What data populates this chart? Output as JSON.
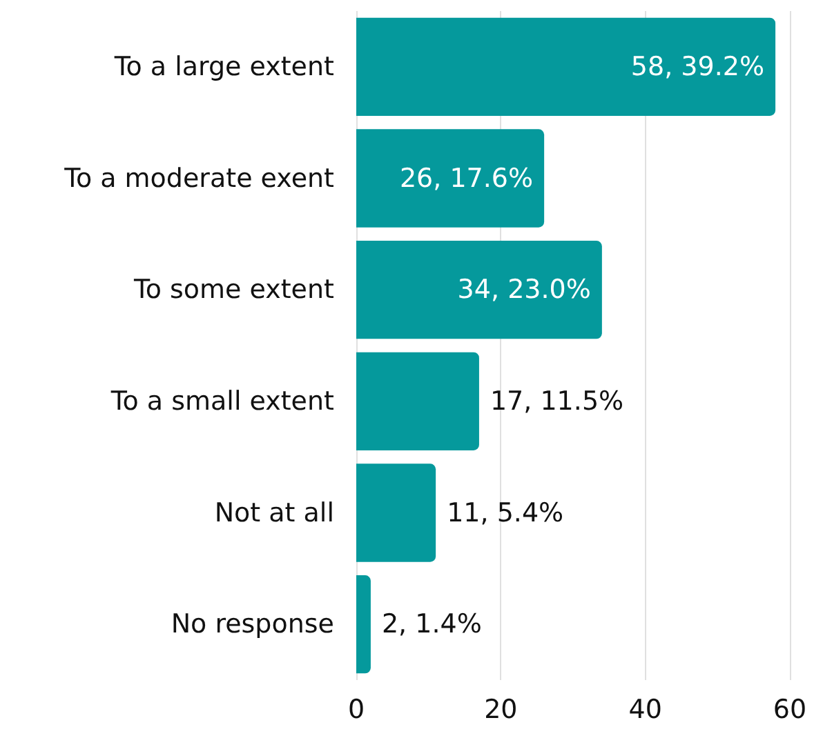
{
  "chart_data": {
    "type": "bar",
    "orientation": "horizontal",
    "categories": [
      "To a large extent",
      "To a moderate exent",
      "To some extent",
      "To a small extent",
      "Not at all",
      "No response"
    ],
    "values": [
      58,
      26,
      34,
      17,
      11,
      2
    ],
    "value_labels": [
      "58, 39.2%",
      "26, 17.6%",
      "34, 23.0%",
      "17, 11.5%",
      "11, 5.4%",
      "2, 1.4%"
    ],
    "color": "#05999c",
    "xlim": [
      0,
      60
    ],
    "xticks": [
      0,
      20,
      40,
      60
    ],
    "grid": "x"
  }
}
